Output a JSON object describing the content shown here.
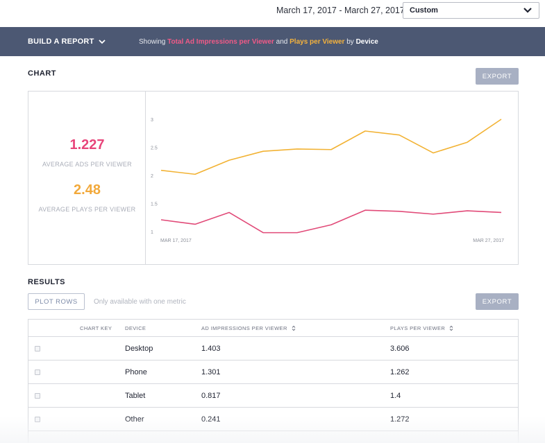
{
  "date_bar": {
    "range_text": "March 17, 2017 - March 27, 2017",
    "range_select_value": "Custom"
  },
  "header": {
    "build_label": "BUILD A REPORT",
    "showing_prefix": "Showing",
    "metric1": "Total Ad Impressions per Viewer",
    "connector": "and",
    "metric2": "Plays per Viewer",
    "by_word": "by",
    "dimension": "Device"
  },
  "chart_section": {
    "title": "CHART",
    "export_label": "EXPORT",
    "stats": [
      {
        "value": "1.227",
        "label": "AVERAGE ADS PER VIEWER",
        "color": "#e8457a"
      },
      {
        "value": "2.48",
        "label": "AVERAGE PLAYS PER VIEWER",
        "color": "#f2a93b"
      }
    ]
  },
  "chart_data": {
    "type": "line",
    "x": [
      "Mar 17",
      "Mar 18",
      "Mar 19",
      "Mar 20",
      "Mar 21",
      "Mar 22",
      "Mar 23",
      "Mar 24",
      "Mar 25",
      "Mar 26",
      "Mar 27"
    ],
    "x_tick_labels": [
      "MAR 17, 2017",
      "MAR 27, 2017"
    ],
    "y_ticks": [
      "1",
      "1.5",
      "2",
      "2.5",
      "3"
    ],
    "ylim": [
      1,
      3
    ],
    "grid": false,
    "series": [
      {
        "values": [
          2.09,
          2.02,
          2.27,
          2.43,
          2.47,
          2.46,
          2.79,
          2.72,
          2.4,
          2.59,
          3.0
        ],
        "color": "#f2b233"
      },
      {
        "values": [
          1.21,
          1.13,
          1.34,
          0.98,
          0.98,
          1.12,
          1.38,
          1.36,
          1.31,
          1.37,
          1.34
        ],
        "color": "#e14a78"
      }
    ]
  },
  "results": {
    "title": "RESULTS",
    "plot_rows_label": "PLOT ROWS",
    "only_note": "Only available with one metric",
    "export_label": "EXPORT",
    "columns": [
      "CHART KEY",
      "DEVICE",
      "AD IMPRESSIONS PER VIEWER",
      "PLAYS PER VIEWER"
    ],
    "rows": [
      {
        "device": "Desktop",
        "ad_imp": "1.403",
        "plays": "3.606"
      },
      {
        "device": "Phone",
        "ad_imp": "1.301",
        "plays": "1.262"
      },
      {
        "device": "Tablet",
        "ad_imp": "0.817",
        "plays": "1.4"
      },
      {
        "device": "Other",
        "ad_imp": "0.241",
        "plays": "1.272"
      }
    ]
  }
}
